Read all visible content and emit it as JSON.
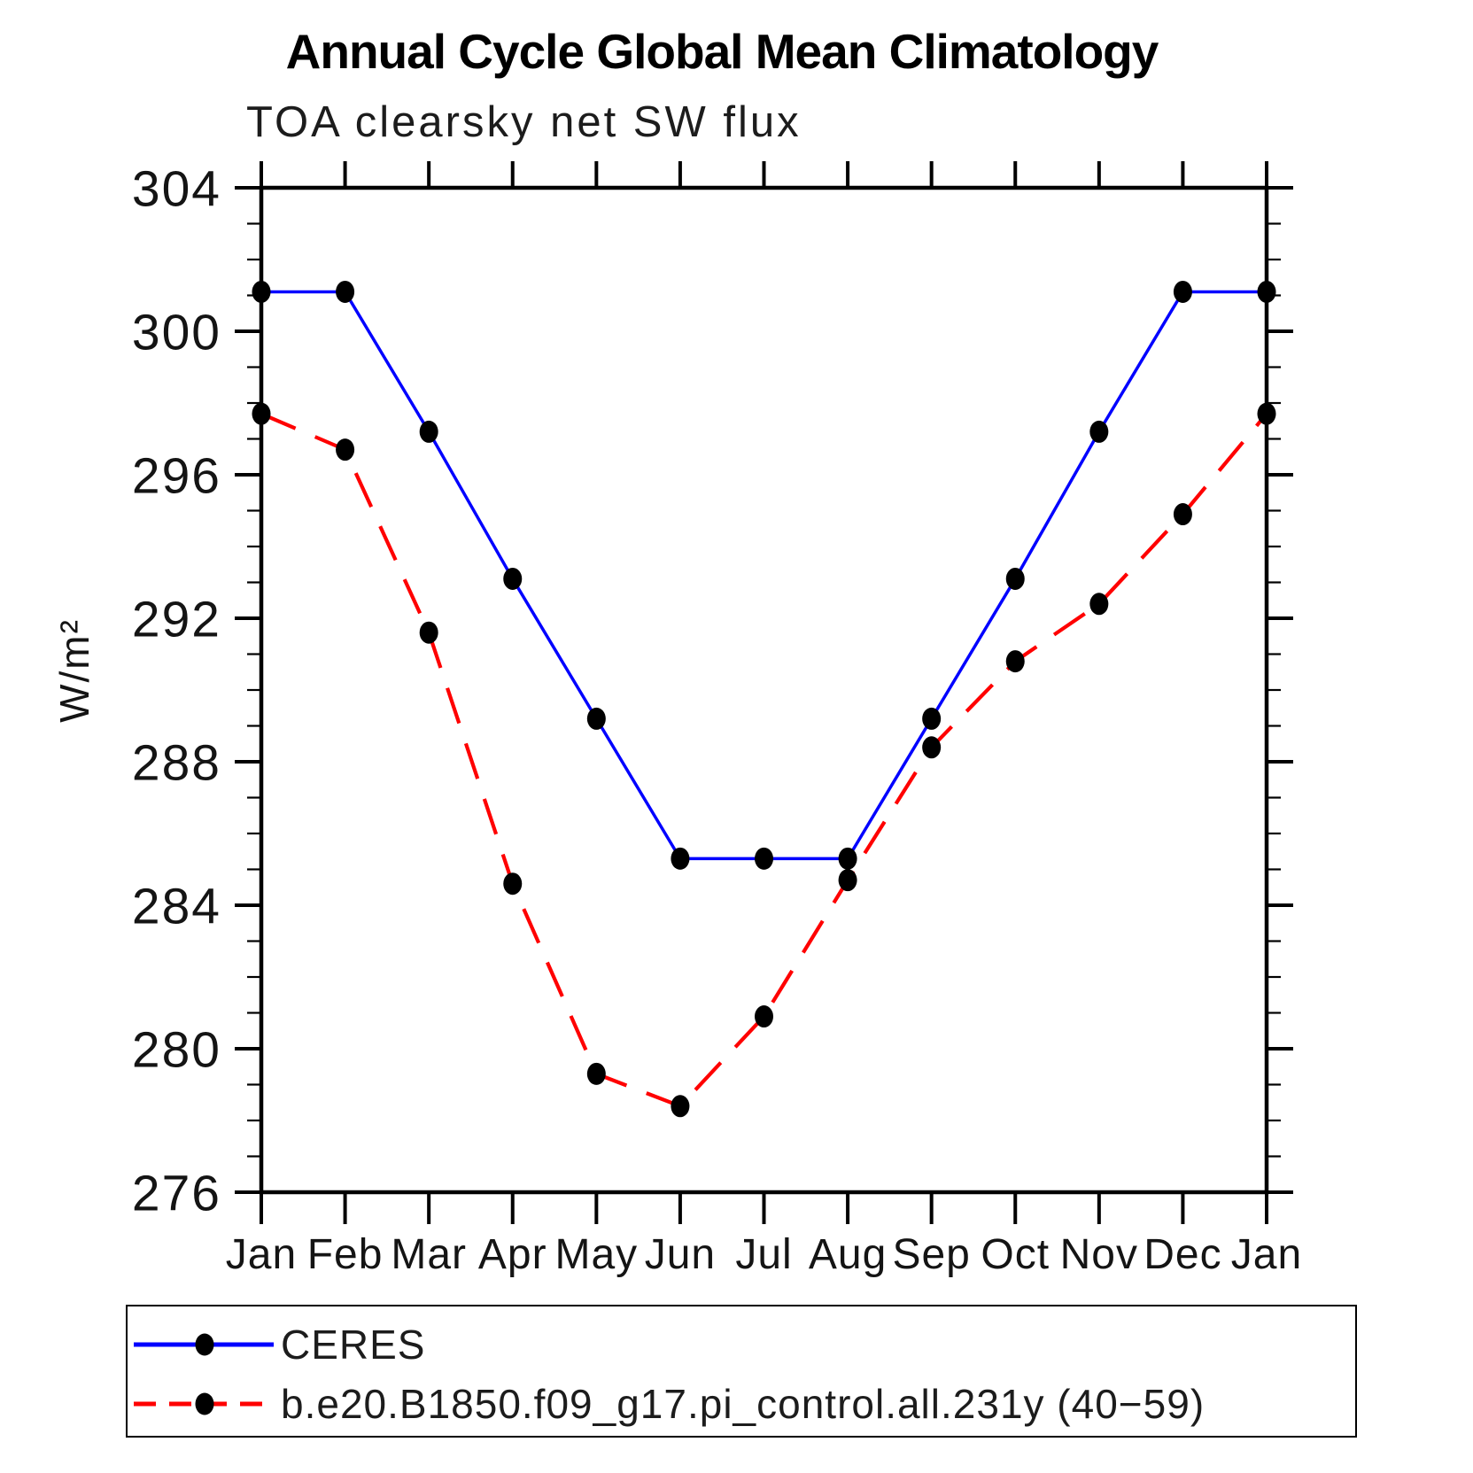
{
  "chart_data": {
    "type": "line",
    "title": "Annual Cycle Global Mean Climatology",
    "subtitle": "TOA clearsky net SW flux",
    "ylabel": "W/m²",
    "categories": [
      "Jan",
      "Feb",
      "Mar",
      "Apr",
      "May",
      "Jun",
      "Jul",
      "Aug",
      "Sep",
      "Oct",
      "Nov",
      "Dec",
      "Jan"
    ],
    "series": [
      {
        "name": "CERES",
        "color": "#0000ff",
        "line_style": "solid",
        "marker": "filled-circle",
        "marker_color": "#000000",
        "values": [
          301.1,
          301.1,
          297.2,
          293.1,
          289.2,
          285.3,
          285.3,
          285.3,
          289.2,
          293.1,
          297.2,
          301.1,
          301.1
        ]
      },
      {
        "name": "b.e20.B1850.f09_g17.pi_control.all.231y (40−59)",
        "color": "#ff0000",
        "line_style": "dashed",
        "marker": "filled-circle",
        "marker_color": "#000000",
        "values": [
          297.7,
          296.7,
          291.6,
          284.6,
          279.3,
          278.4,
          280.9,
          284.7,
          288.4,
          290.8,
          292.4,
          294.9,
          297.7
        ]
      }
    ],
    "ylim": [
      276,
      304
    ],
    "y_major_step": 4,
    "y_minor_step": 1,
    "grid": false,
    "legend_position": "bottom",
    "frame_color": "#000000",
    "background_color": "#ffffff"
  }
}
